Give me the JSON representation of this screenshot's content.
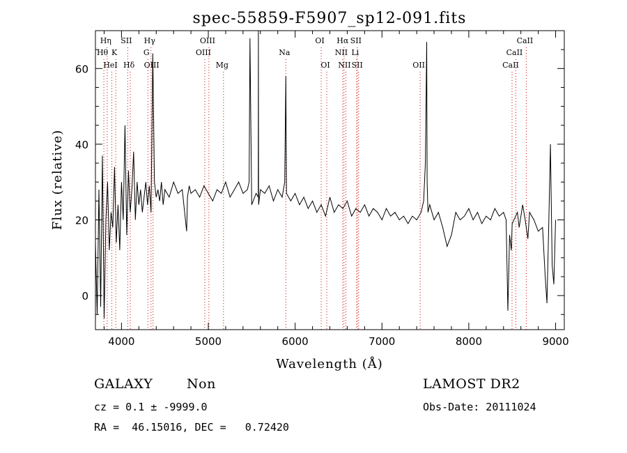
{
  "chart_data": {
    "type": "line",
    "title": "spec-55859-F5907_sp12-091.fits",
    "xlabel": "Wavelength (Å)",
    "ylabel": "Flux (relative)",
    "xlim": [
      3700,
      9100
    ],
    "ylim": [
      -9,
      70
    ],
    "x_ticks": [
      4000,
      5000,
      6000,
      7000,
      8000,
      9000
    ],
    "y_ticks": [
      0,
      20,
      40,
      60
    ],
    "grid": false,
    "line_color": "#000000",
    "marker_color": "#cc0000",
    "series": [
      {
        "x": [
          3700,
          3720,
          3740,
          3760,
          3780,
          3800,
          3820,
          3840,
          3860,
          3880,
          3900,
          3920,
          3940,
          3960,
          3980,
          4000,
          4020,
          4040,
          4060,
          4080,
          4100,
          4120,
          4140,
          4160,
          4180,
          4200,
          4220,
          4240,
          4260,
          4280,
          4300,
          4320,
          4340,
          4360,
          4380,
          4400,
          4420,
          4440,
          4460,
          4480,
          4500,
          4550,
          4600,
          4650,
          4700,
          4750,
          4760,
          4780,
          4800,
          4850,
          4900,
          4950,
          5000,
          5050,
          5100,
          5150,
          5200,
          5250,
          5300,
          5350,
          5400,
          5450,
          5470,
          5480,
          5500,
          5550,
          5575,
          5577,
          5579,
          5600,
          5650,
          5700,
          5750,
          5800,
          5850,
          5880,
          5893,
          5900,
          5950,
          6000,
          6050,
          6100,
          6150,
          6200,
          6250,
          6300,
          6350,
          6400,
          6450,
          6500,
          6550,
          6600,
          6650,
          6700,
          6750,
          6800,
          6850,
          6900,
          6950,
          7000,
          7050,
          7100,
          7150,
          7200,
          7250,
          7300,
          7350,
          7400,
          7450,
          7480,
          7500,
          7515,
          7520,
          7530,
          7550,
          7600,
          7650,
          7700,
          7750,
          7800,
          7850,
          7900,
          7950,
          8000,
          8050,
          8100,
          8150,
          8200,
          8250,
          8300,
          8350,
          8400,
          8430,
          8450,
          8470,
          8490,
          8500,
          8540,
          8560,
          8580,
          8620,
          8650,
          8680,
          8700,
          8750,
          8800,
          8850,
          8880,
          8900,
          8920,
          8940,
          8960,
          8980,
          9000
        ],
        "values": [
          14,
          -5,
          28,
          -3,
          37,
          -6,
          20,
          30,
          12,
          22,
          18,
          34,
          14,
          24,
          12,
          30,
          20,
          45,
          16,
          33,
          22,
          28,
          38,
          20,
          30,
          24,
          28,
          22,
          26,
          30,
          24,
          29,
          22,
          64,
          30,
          26,
          28,
          25,
          30,
          24,
          28,
          26,
          30,
          27,
          28,
          17,
          26,
          29,
          27,
          28,
          26,
          29,
          27,
          25,
          28,
          27,
          30,
          26,
          28,
          30,
          27,
          28,
          30,
          68,
          24,
          27,
          26,
          70,
          24,
          28,
          27,
          29,
          25,
          28,
          26,
          30,
          58,
          27,
          25,
          27,
          24,
          26,
          23,
          25,
          22,
          24,
          21,
          26,
          22,
          24,
          23,
          25,
          21,
          23,
          22,
          24,
          21,
          23,
          22,
          20,
          23,
          21,
          22,
          20,
          21,
          19,
          21,
          20,
          22,
          25,
          35,
          67,
          30,
          22,
          24,
          20,
          22,
          18,
          13,
          16,
          22,
          20,
          21,
          23,
          20,
          22,
          19,
          21,
          20,
          23,
          21,
          22,
          20,
          -4,
          16,
          12,
          19,
          21,
          22,
          18,
          24,
          20,
          15,
          22,
          20,
          17,
          18,
          5,
          -2,
          18,
          40,
          8,
          3,
          20
        ]
      }
    ],
    "line_markers": [
      {
        "label": "Hη",
        "x": 3835,
        "row": 0
      },
      {
        "label": "Hθ",
        "x": 3797,
        "row": 1
      },
      {
        "label": "K",
        "x": 3934,
        "row": 1
      },
      {
        "label": "HeI",
        "x": 3889,
        "row": 2
      },
      {
        "label": "SII",
        "x": 4072,
        "row": 0
      },
      {
        "label": "Hδ",
        "x": 4102,
        "row": 2
      },
      {
        "label": "Hγ",
        "x": 4340,
        "row": 0
      },
      {
        "label": "G",
        "x": 4304,
        "row": 1
      },
      {
        "label": "OIII",
        "x": 4363,
        "row": 2
      },
      {
        "label": "OIII",
        "x": 5007,
        "row": 0
      },
      {
        "label": "OIII",
        "x": 4959,
        "row": 1
      },
      {
        "label": "Mg",
        "x": 5175,
        "row": 2
      },
      {
        "label": "Na",
        "x": 5893,
        "row": 1
      },
      {
        "label": "OI",
        "x": 6300,
        "row": 0
      },
      {
        "label": "OI",
        "x": 6364,
        "row": 2
      },
      {
        "label": "Hα",
        "x": 6563,
        "row": 0
      },
      {
        "label": "SII",
        "x": 6716,
        "row": 0
      },
      {
        "label": "NII",
        "x": 6548,
        "row": 1
      },
      {
        "label": "Li",
        "x": 6708,
        "row": 1
      },
      {
        "label": "NII",
        "x": 6584,
        "row": 2
      },
      {
        "label": "SII",
        "x": 6731,
        "row": 2
      },
      {
        "label": "OII",
        "x": 7440,
        "row": 2
      },
      {
        "label": "CaII",
        "x": 8662,
        "row": 0
      },
      {
        "label": "CaII",
        "x": 8542,
        "row": 1
      },
      {
        "label": "CaII",
        "x": 8498,
        "row": 2
      }
    ]
  },
  "info": {
    "class_label": "GALAXY",
    "subclass_label": "Non",
    "survey_label": "LAMOST DR2",
    "cz_text": "cz = 0.1 ± -9999.0",
    "obs_date_text": "Obs-Date: 20111024",
    "radec_text": "RA =  46.15016, DEC =   0.72420"
  }
}
